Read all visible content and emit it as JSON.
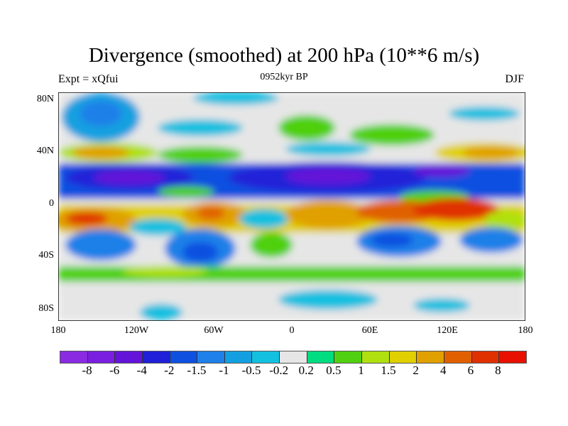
{
  "title": "Divergence (smoothed) at 200 hPa (10**6 m/s)",
  "left_subtitle": "Expt = xQfui",
  "center_subtitle": "0952kyr BP",
  "right_subtitle": "DJF",
  "lat_labels": [
    "80N",
    "40N",
    "0",
    "40S",
    "80S"
  ],
  "lon_labels": [
    "180",
    "120W",
    "60W",
    "0",
    "60E",
    "120E",
    "180"
  ],
  "colorbar": {
    "colors": [
      "#8a2be2",
      "#7a1ee0",
      "#6414d8",
      "#2020d8",
      "#1050e0",
      "#1e80e8",
      "#14a0e0",
      "#14c0e0",
      "#e6e6e6",
      "#00dc80",
      "#50d010",
      "#b0e010",
      "#e0d000",
      "#e0a000",
      "#e06000",
      "#e03000",
      "#e81000"
    ],
    "labels": [
      "-8",
      "-6",
      "-4",
      "-2",
      "-1.5",
      "-1",
      "-0.5",
      "-0.2",
      "0.2",
      "0.5",
      "1",
      "1.5",
      "2",
      "4",
      "6",
      "8"
    ]
  }
}
